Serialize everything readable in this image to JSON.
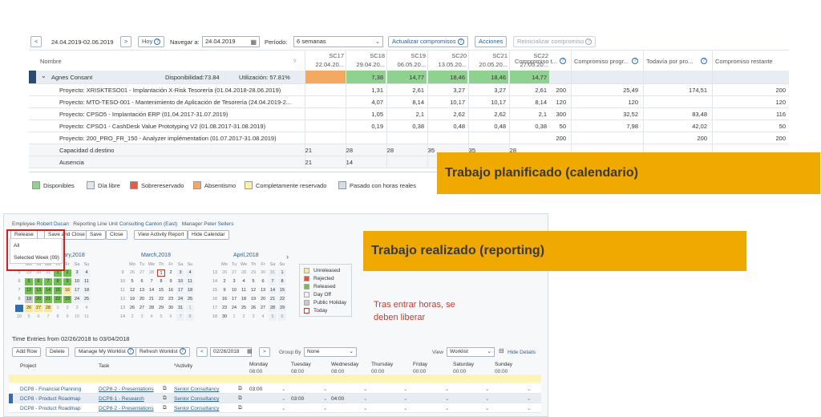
{
  "planner": {
    "prev_label": "<",
    "date_range": "24.04.2019-02.06.2019",
    "next_label": ">",
    "today_label": "Hoy",
    "navigate_label": "Navegar a:",
    "navigate_value": "24.04.2019",
    "period_label": "Período:",
    "period_value": "6 semanas",
    "update_btn": "Actualizar compromisos",
    "actions_btn": "Acciones",
    "reset_btn": "Reinicializar compromiso",
    "col_name": "Nombre",
    "weeks": [
      {
        "week": "SC17",
        "date": "22.04.20..."
      },
      {
        "week": "SC18",
        "date": "29.04.20..."
      },
      {
        "week": "SC19",
        "date": "06.05.20..."
      },
      {
        "week": "SC20",
        "date": "13.05.20..."
      },
      {
        "week": "SC21",
        "date": "20.05.20..."
      },
      {
        "week": "SC22",
        "date": "27.05.20..."
      }
    ],
    "extra_cols": [
      "Compromiso t...",
      "Compromiso progr...",
      "Todavía por pro...",
      "Compromiso restante"
    ],
    "resource": {
      "name": "Agnes Consant",
      "availability": "Disponibilidad:73.84",
      "utilization": "Utilización: 57.81%",
      "values": [
        "",
        "7,38",
        "14,77",
        "18,46",
        "18,46",
        "14,77"
      ]
    },
    "rows": [
      {
        "name": "Proyecto: XRISKTESO01 - Implantación X-Risk Tesorería (01.04.2018-28.06.2019)",
        "values": [
          "",
          "1,31",
          "2,61",
          "3,27",
          "3,27",
          "2,61"
        ],
        "extras": [
          "200",
          "25,49",
          "174,51",
          "200"
        ]
      },
      {
        "name": "Proyecto: MTO-TESO-001 - Mantenimiento de Aplicación de Tesorería (24.04.2019-2...",
        "values": [
          "",
          "4,07",
          "8,14",
          "10,17",
          "10,17",
          "8,14"
        ],
        "extras": [
          "120",
          "120",
          "",
          "120"
        ]
      },
      {
        "name": "Proyecto: CPSO5 - Implantación ERP (01.04.2017-31.07.2019)",
        "values": [
          "",
          "1,05",
          "2,1",
          "2,62",
          "2,62",
          "2,1"
        ],
        "extras": [
          "300",
          "32,52",
          "83,48",
          "116"
        ]
      },
      {
        "name": "Proyecto: CPSO1 - CashDesk Value Prototyping V2 (01.08.2017-31.08.2019)",
        "values": [
          "",
          "0,19",
          "0,38",
          "0,48",
          "0,48",
          "0,38"
        ],
        "extras": [
          "50",
          "7,98",
          "42,02",
          "50"
        ]
      },
      {
        "name": "Proyecto: 200_PRO_FR_150 - Analyzer implémentation (01.07.2017-31.08.2019)",
        "values": [
          "",
          "",
          "",
          "",
          "",
          ""
        ],
        "extras": [
          "200",
          "",
          "200",
          "200"
        ]
      }
    ],
    "capacity": {
      "name": "Capacidad d.destino",
      "values": [
        "21",
        "28",
        "28",
        "35",
        "35",
        "28"
      ]
    },
    "absence": {
      "name": "Ausencia",
      "values": [
        "21",
        "14",
        "",
        "",
        "",
        ""
      ]
    },
    "legend": [
      {
        "label": "Disponibles",
        "color": "#8fd18f"
      },
      {
        "label": "Día libre",
        "color": "#dfe6ee"
      },
      {
        "label": "Sobrereservado",
        "color": "#e35b4b"
      },
      {
        "label": "Absentismo",
        "color": "#f5a860"
      },
      {
        "label": "Completamente reservado",
        "color": "#fbf2a6"
      },
      {
        "label": "Pasado con horas reales",
        "color": "#d3dde8"
      }
    ]
  },
  "banners": {
    "planned": "Trabajo planificado (calendario)",
    "reported": "Trabajo realizado (reporting)",
    "note": "Tras entrar horas, se deben liberar"
  },
  "timesheet": {
    "employee_label": "Employee",
    "employee": "Robert Ducan",
    "line_unit_label": "Reporting Line Unit",
    "line_unit": "Consulting Canton (East)",
    "manager_label": "Manager",
    "manager": "Peter Sellers",
    "toolbar": [
      "Release",
      "Save and Close",
      "Save",
      "Close",
      "View Activity Report",
      "Hide Calendar"
    ],
    "dropdown": [
      "All",
      "Selected Week (09)"
    ],
    "months": [
      "ary,2018",
      "March,2018",
      "April,2018"
    ],
    "cal_legend": [
      {
        "label": "Unreleased",
        "color": "#fde89a"
      },
      {
        "label": "Rejected",
        "color": "#e4572e"
      },
      {
        "label": "Released",
        "color": "#6cc24a"
      },
      {
        "label": "Day Off",
        "color": "#eef2f6"
      },
      {
        "label": "Public Holiday",
        "color": "#c5cad0"
      },
      {
        "label": "Today",
        "color": "#ffffff"
      }
    ],
    "entries_title": "Time Entries from 02/26/2018 to 03/04/2018",
    "entry_toolbar": [
      "Add Row",
      "Delete",
      "Manage My Worklist",
      "Refresh Worklist"
    ],
    "entry_date": "02/26/2018",
    "group_by_label": "Group By",
    "group_by_value": "None",
    "view_label": "View",
    "view_value": "Worklist",
    "hide_details": "Hide Details",
    "cols": {
      "project": "Project",
      "task": "Task",
      "activity": "*Activity"
    },
    "days": [
      {
        "name": "Monday",
        "hours": "08:00",
        "total": "03:00"
      },
      {
        "name": "Tuesday",
        "hours": "08:00",
        "total": "03:00"
      },
      {
        "name": "Wednesday",
        "hours": "08:00",
        "total": "04:00"
      },
      {
        "name": "Thursday",
        "hours": "00:00",
        "total": "00:00"
      },
      {
        "name": "Friday",
        "hours": "00:00",
        "total": "00:00"
      },
      {
        "name": "Saturday",
        "hours": "00:00",
        "total": "00:00"
      },
      {
        "name": "Sunday",
        "hours": "00:00",
        "total": "00:00"
      }
    ],
    "entries": [
      {
        "project": "DCP8 - Financial Planning",
        "task": "DCP8-2 - Presentations",
        "activity": "Senior Consultancy",
        "mon": "03:00",
        "tue": "",
        "wed": ""
      },
      {
        "project": "DCP8 - Product Roadmap",
        "task": "DCP8-1 - Research",
        "activity": "Senior Consultancy",
        "mon": "",
        "tue": "03:00",
        "wed": "04:00"
      },
      {
        "project": "DCP8 - Product Roadmap",
        "task": "DCP8-2 - Presentations",
        "activity": "Senior Consultancy",
        "mon": "",
        "tue": "",
        "wed": ""
      }
    ]
  }
}
